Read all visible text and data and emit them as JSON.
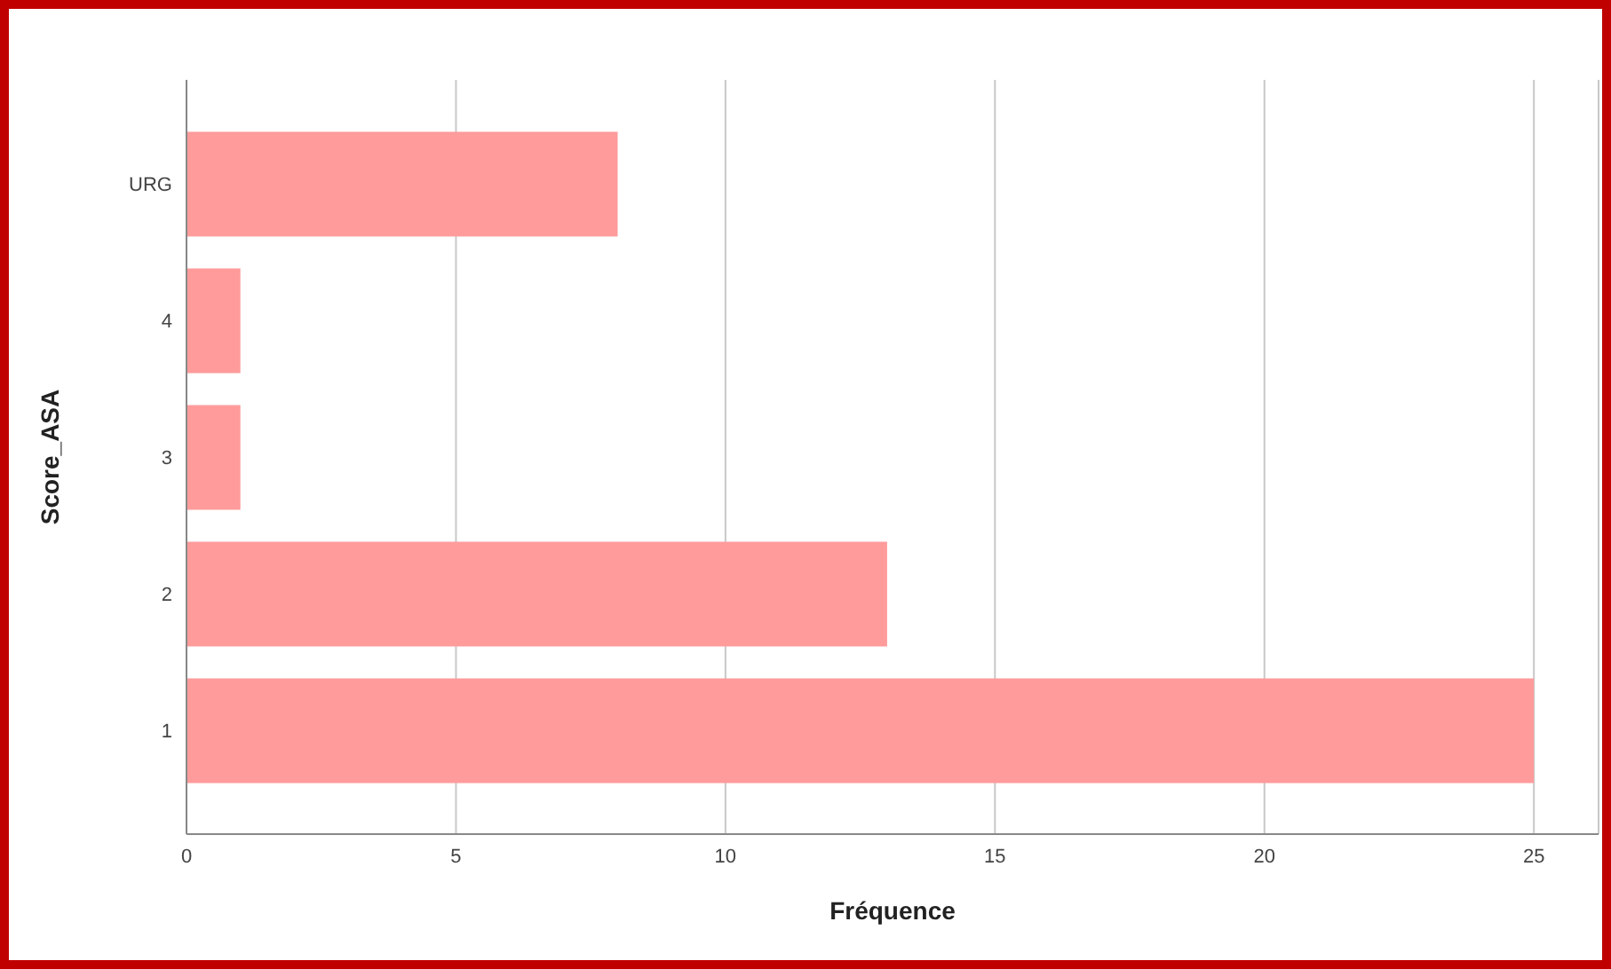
{
  "chart_data": {
    "type": "bar",
    "orientation": "horizontal",
    "xlabel": "Fréquence",
    "ylabel": "Score_ASA",
    "categories": [
      "URG",
      "4",
      "3",
      "2",
      "1"
    ],
    "values": [
      8,
      1,
      1,
      13,
      25
    ],
    "color": "#ff9b9b",
    "xlim": [
      0,
      26.2
    ],
    "xticks": [
      0,
      5,
      10,
      15,
      20,
      25
    ],
    "grid": "x"
  }
}
